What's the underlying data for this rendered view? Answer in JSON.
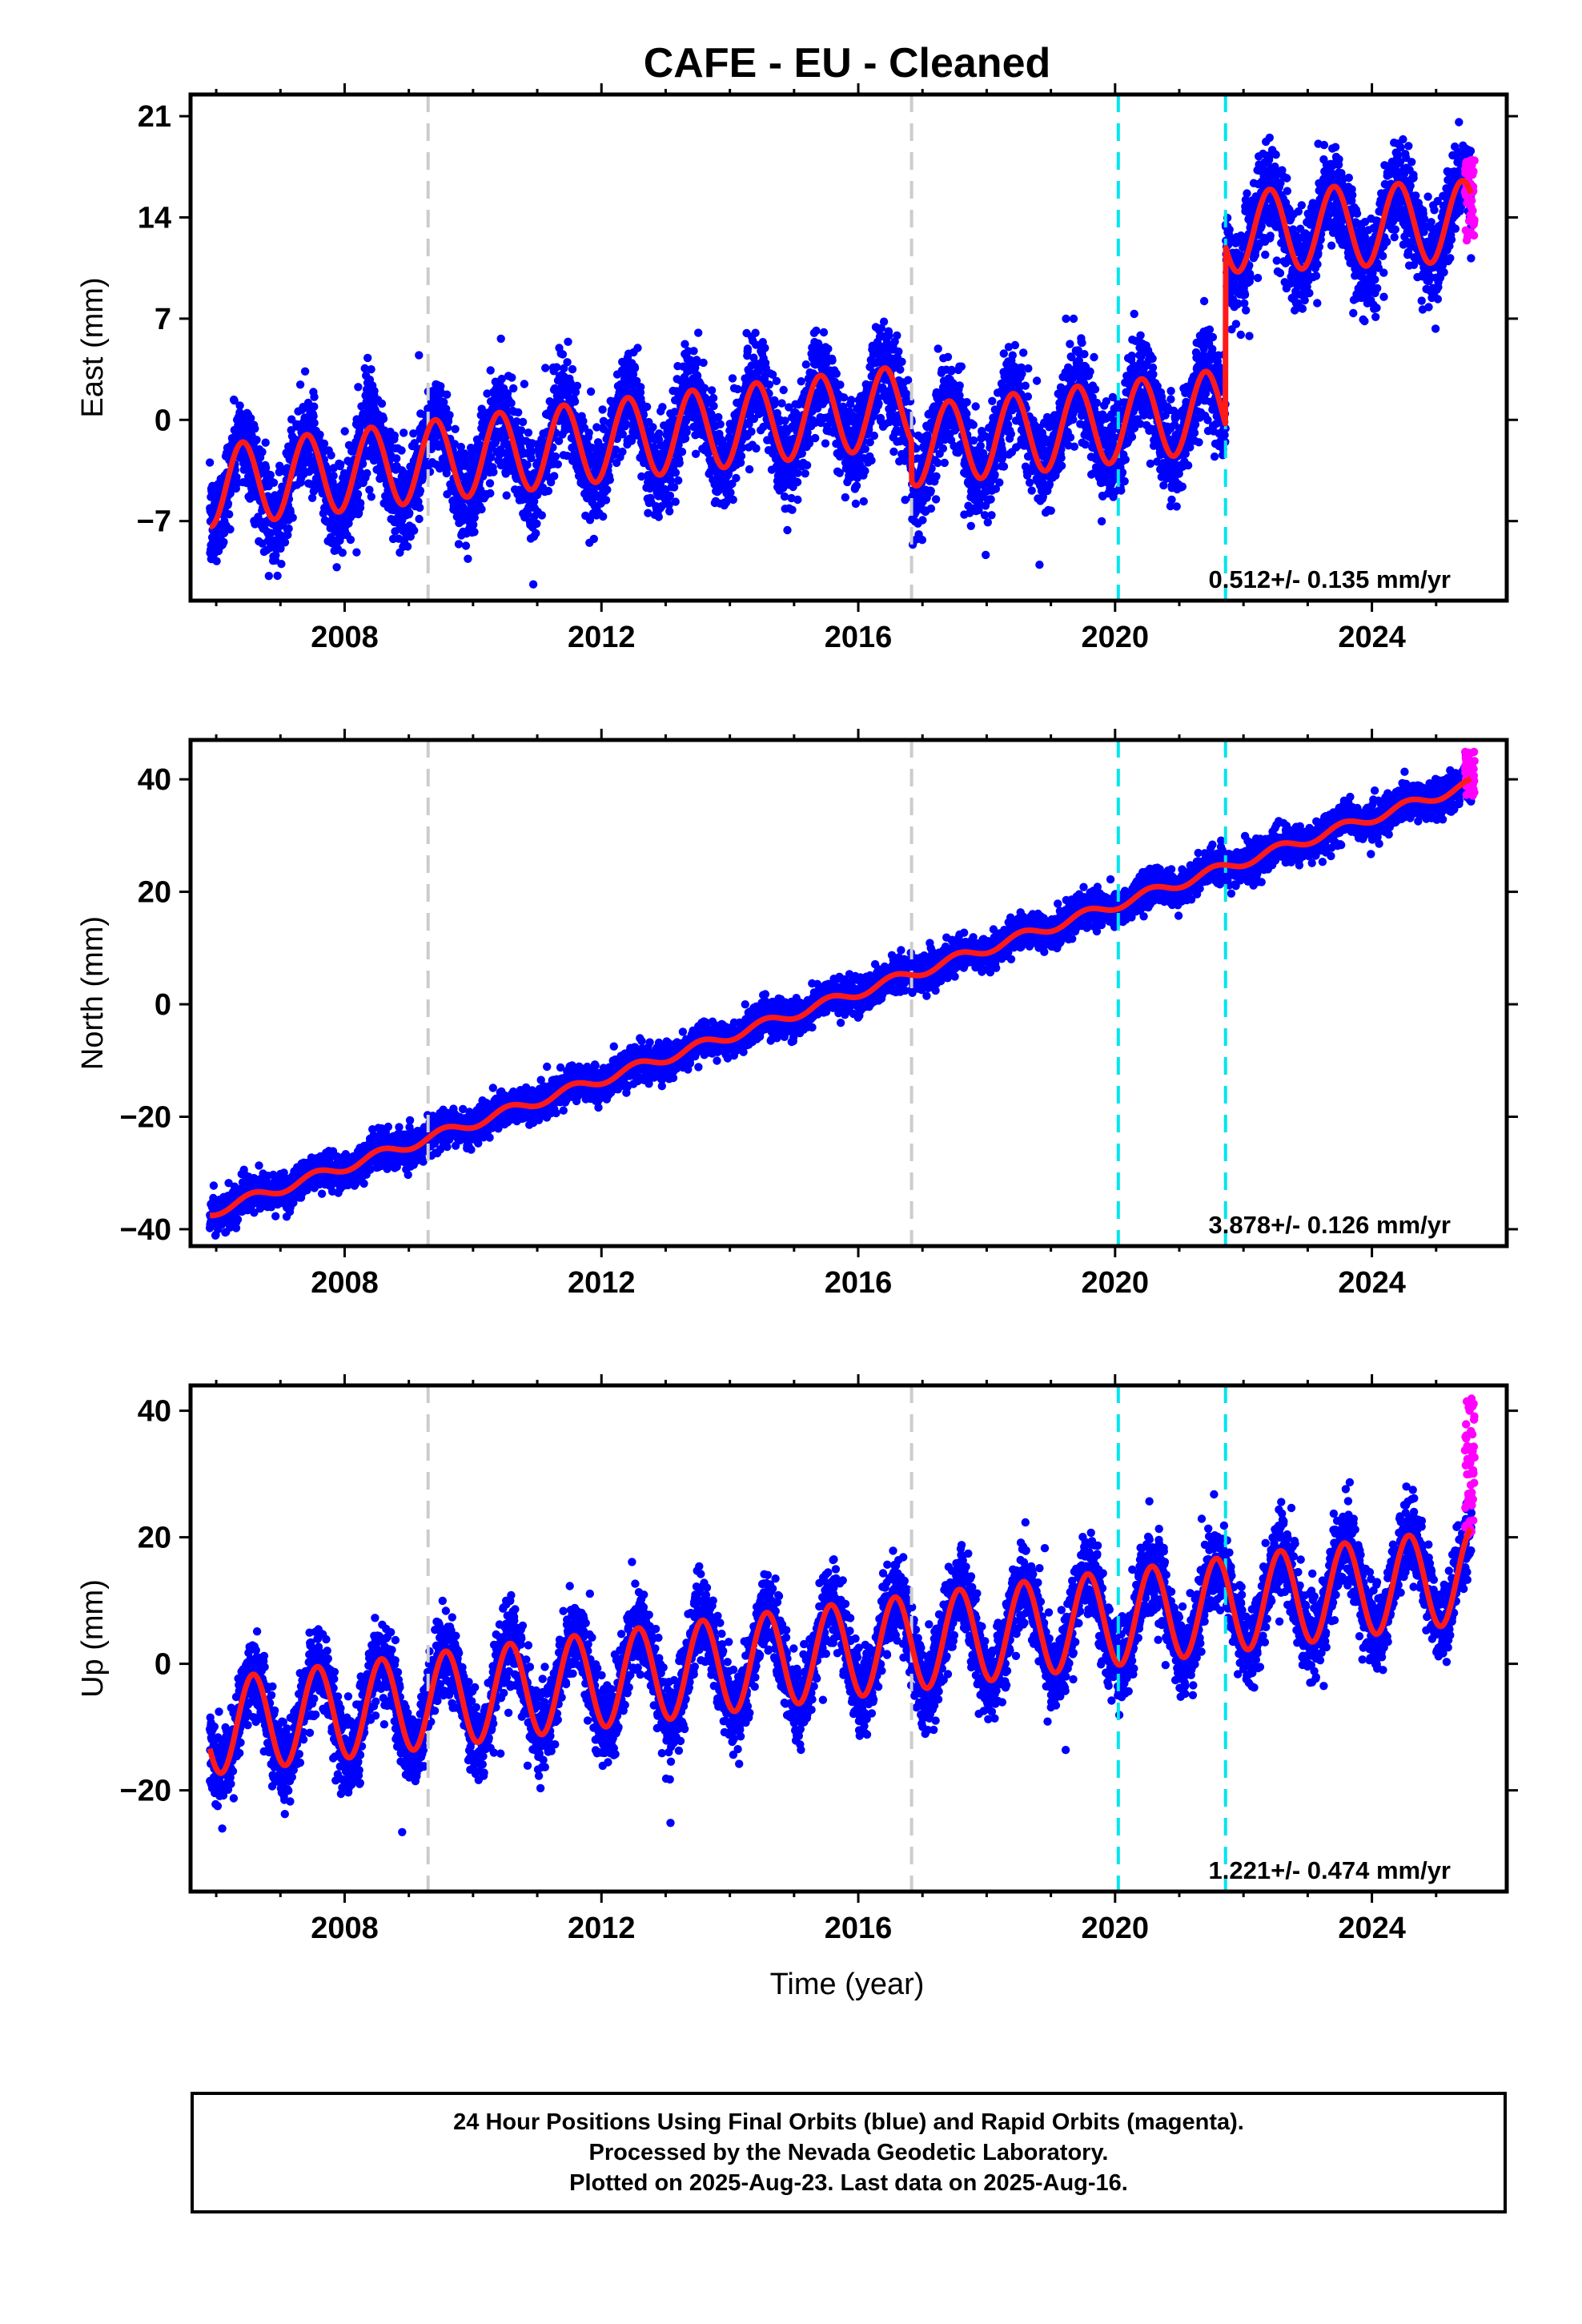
{
  "figure": {
    "title": "CAFE  - EU - Cleaned",
    "xlabel": "Time (year)",
    "footer": [
      "24 Hour Positions Using Final Orbits (blue) and Rapid Orbits (magenta).",
      "Processed by the Nevada Geodetic Laboratory.",
      "Plotted on 2025-Aug-23. Last data on 2025-Aug-16."
    ]
  },
  "colors": {
    "final_orbits": "#0000ff",
    "rapid_orbits": "#ff00ff",
    "model": "#ff1a1a",
    "equipment_change": "#cccccc",
    "earthquake": "#00e5ee"
  },
  "chart_data": [
    {
      "type": "scatter",
      "ylabel": "East (mm)",
      "xlim": [
        2005.6,
        2026.1
      ],
      "ylim": [
        -12.5,
        22.5
      ],
      "xticks": [
        2008,
        2012,
        2016,
        2020,
        2024
      ],
      "xtick_labels": [
        "2008",
        "2012",
        "2016",
        "2020",
        "2024"
      ],
      "yticks": [
        -7,
        0,
        7,
        14,
        21
      ],
      "ytick_labels": [
        "−7",
        "0",
        "7",
        "14",
        "21"
      ],
      "velocity_label": "0.512+/- 0.135 mm/yr",
      "model": {
        "start": 2005.9,
        "end": 2025.55,
        "segments_at": [
          2016.83,
          2021.72
        ],
        "offsets": [
          -4.6,
          -1.8,
          13.0
        ],
        "rates": [
          0.512,
          0.512,
          0.2
        ],
        "annual_amp": 2.8,
        "annual_peak_day": 150,
        "noise_sd": 1.6
      },
      "rapid": {
        "start": 2025.45,
        "end": 2025.6,
        "values": [
          12,
          18
        ]
      }
    },
    {
      "type": "scatter",
      "ylabel": "North (mm)",
      "xlim": [
        2005.6,
        2026.1
      ],
      "ylim": [
        -43,
        47
      ],
      "xticks": [
        2008,
        2012,
        2016,
        2020,
        2024
      ],
      "xtick_labels": [
        "2008",
        "2012",
        "2016",
        "2020",
        "2024"
      ],
      "yticks": [
        -40,
        -20,
        0,
        20,
        40
      ],
      "ytick_labels": [
        "−40",
        "−20",
        "0",
        "20",
        "40"
      ],
      "velocity_label": "3.878+/- 0.126 mm/yr",
      "model": {
        "start": 2005.9,
        "end": 2025.55,
        "segments_at": [],
        "offsets": [
          -37.0
        ],
        "rates": [
          3.878
        ],
        "annual_amp": 0.9,
        "annual_peak_day": 200,
        "noise_sd": 1.5
      },
      "rapid": {
        "start": 2025.45,
        "end": 2025.6,
        "values": [
          37,
          45
        ]
      }
    },
    {
      "type": "scatter",
      "ylabel": "Up (mm)",
      "xlim": [
        2005.6,
        2026.1
      ],
      "ylim": [
        -36,
        44
      ],
      "xticks": [
        2008,
        2012,
        2016,
        2020,
        2024
      ],
      "xtick_labels": [
        "2008",
        "2012",
        "2016",
        "2020",
        "2024"
      ],
      "yticks": [
        -20,
        0,
        20,
        40
      ],
      "ytick_labels": [
        "−20",
        "0",
        "20",
        "40"
      ],
      "velocity_label": "1.221+/- 0.474 mm/yr",
      "model": {
        "start": 2005.9,
        "end": 2025.55,
        "segments_at": [],
        "offsets": [
          -10.0
        ],
        "rates": [
          1.221
        ],
        "annual_amp": 7.5,
        "annual_peak_day": 210,
        "noise_sd": 3.2
      },
      "rapid": {
        "start": 2025.45,
        "end": 2025.6,
        "values": [
          20,
          42
        ]
      }
    }
  ],
  "markers": {
    "equipment_changes": [
      2009.3,
      2016.83
    ],
    "earthquakes": [
      2020.05,
      2021.72
    ]
  }
}
